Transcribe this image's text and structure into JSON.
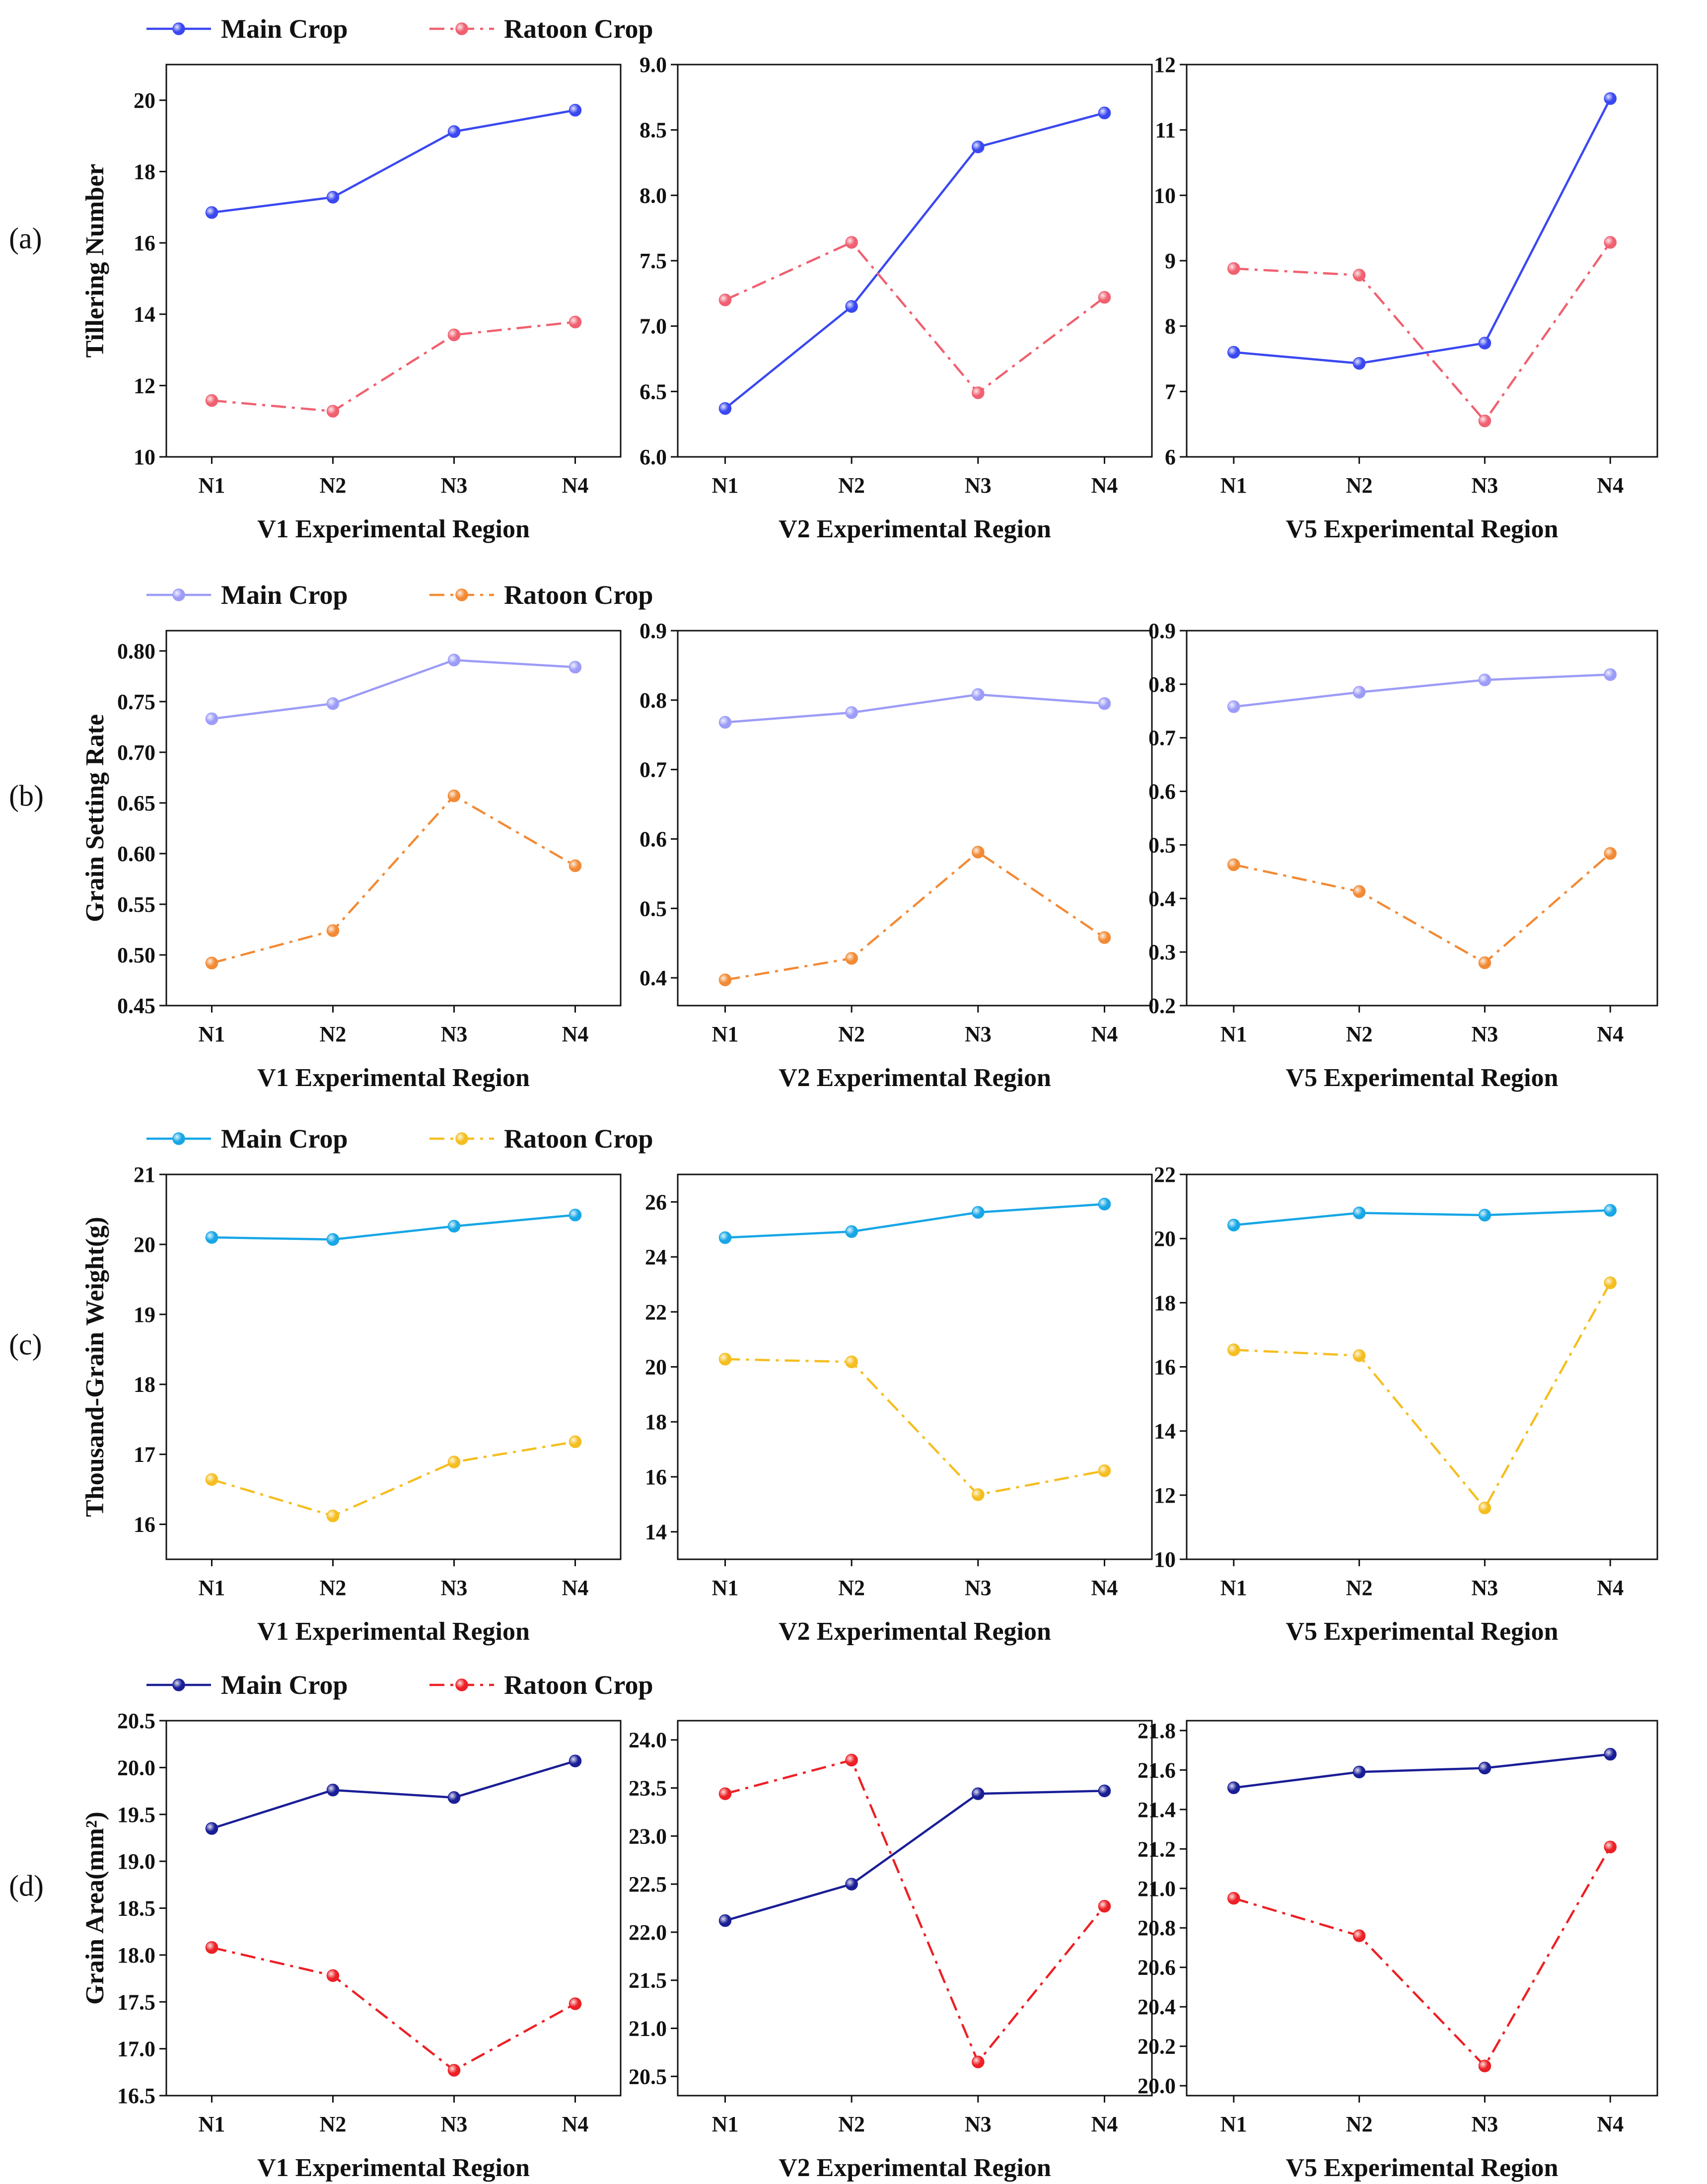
{
  "chart_data": [
    {
      "type": "line",
      "row": "a",
      "panel": "V1",
      "row_label": "(a)",
      "ylabel": "Tillering Number",
      "xlabel": "V1 Experimental Region",
      "categories": [
        "N1",
        "N2",
        "N3",
        "N4"
      ],
      "ylim": [
        10,
        21
      ],
      "yticks": [
        10,
        12,
        14,
        16,
        18,
        20
      ],
      "ytick_labels": [
        "10",
        "12",
        "14",
        "16",
        "18",
        "20"
      ],
      "legend": true,
      "series": [
        {
          "name": "Main Crop",
          "values": [
            16.85,
            17.28,
            19.12,
            19.72
          ],
          "color": "#3a48f0",
          "dash": "solid"
        },
        {
          "name": "Ratoon Crop",
          "values": [
            11.58,
            11.28,
            13.42,
            13.78
          ],
          "color": "#f06070",
          "dash": "dashdot"
        }
      ]
    },
    {
      "type": "line",
      "row": "a",
      "panel": "V2",
      "xlabel": "V2 Experimental Region",
      "categories": [
        "N1",
        "N2",
        "N3",
        "N4"
      ],
      "ylim": [
        6.0,
        9.0
      ],
      "yticks": [
        6.0,
        6.5,
        7.0,
        7.5,
        8.0,
        8.5,
        9.0
      ],
      "ytick_labels": [
        "6.0",
        "6.5",
        "7.0",
        "7.5",
        "8.0",
        "8.5",
        "9.0"
      ],
      "series": [
        {
          "name": "Main Crop",
          "values": [
            6.37,
            7.15,
            8.37,
            8.63
          ],
          "color": "#3a48f0",
          "dash": "solid"
        },
        {
          "name": "Ratoon Crop",
          "values": [
            7.2,
            7.64,
            6.49,
            7.22
          ],
          "color": "#f06070",
          "dash": "dashdot"
        }
      ]
    },
    {
      "type": "line",
      "row": "a",
      "panel": "V5",
      "xlabel": "V5 Experimental Region",
      "categories": [
        "N1",
        "N2",
        "N3",
        "N4"
      ],
      "ylim": [
        6,
        12
      ],
      "yticks": [
        6,
        7,
        8,
        9,
        10,
        11,
        12
      ],
      "ytick_labels": [
        "6",
        "7",
        "8",
        "9",
        "10",
        "11",
        "12"
      ],
      "series": [
        {
          "name": "Main Crop",
          "values": [
            7.6,
            7.43,
            7.74,
            11.48
          ],
          "color": "#3a48f0",
          "dash": "solid"
        },
        {
          "name": "Ratoon Crop",
          "values": [
            8.88,
            8.78,
            6.55,
            9.28
          ],
          "color": "#f06070",
          "dash": "dashdot"
        }
      ]
    },
    {
      "type": "line",
      "row": "b",
      "panel": "V1",
      "row_label": "(b)",
      "ylabel": "Grain Setting Rate",
      "xlabel": "V1 Experimental Region",
      "categories": [
        "N1",
        "N2",
        "N3",
        "N4"
      ],
      "ylim": [
        0.45,
        0.82
      ],
      "yticks": [
        0.45,
        0.5,
        0.55,
        0.6,
        0.65,
        0.7,
        0.75,
        0.8
      ],
      "ytick_labels": [
        "0.45",
        "0.50",
        "0.55",
        "0.60",
        "0.65",
        "0.70",
        "0.75",
        "0.80"
      ],
      "legend": true,
      "series": [
        {
          "name": "Main Crop",
          "values": [
            0.733,
            0.748,
            0.791,
            0.784
          ],
          "color": "#9c9cf8",
          "dash": "solid"
        },
        {
          "name": "Ratoon Crop",
          "values": [
            0.492,
            0.524,
            0.657,
            0.588
          ],
          "color": "#f28a35",
          "dash": "dashdot"
        }
      ]
    },
    {
      "type": "line",
      "row": "b",
      "panel": "V2",
      "xlabel": "V2 Experimental Region",
      "categories": [
        "N1",
        "N2",
        "N3",
        "N4"
      ],
      "ylim": [
        0.36,
        0.9
      ],
      "yticks": [
        0.4,
        0.5,
        0.6,
        0.7,
        0.8,
        0.9
      ],
      "ytick_labels": [
        "0.4",
        "0.5",
        "0.6",
        "0.7",
        "0.8",
        "0.9"
      ],
      "series": [
        {
          "name": "Main Crop",
          "values": [
            0.768,
            0.782,
            0.808,
            0.795
          ],
          "color": "#9c9cf8",
          "dash": "solid"
        },
        {
          "name": "Ratoon Crop",
          "values": [
            0.397,
            0.428,
            0.581,
            0.458
          ],
          "color": "#f28a35",
          "dash": "dashdot"
        }
      ]
    },
    {
      "type": "line",
      "row": "b",
      "panel": "V5",
      "xlabel": "V5 Experimental Region",
      "categories": [
        "N1",
        "N2",
        "N3",
        "N4"
      ],
      "ylim": [
        0.2,
        0.9
      ],
      "yticks": [
        0.2,
        0.3,
        0.4,
        0.5,
        0.6,
        0.7,
        0.8,
        0.9
      ],
      "ytick_labels": [
        "0.2",
        "0.3",
        "0.4",
        "0.5",
        "0.6",
        "0.7",
        "0.8",
        "0.9"
      ],
      "series": [
        {
          "name": "Main Crop",
          "values": [
            0.758,
            0.785,
            0.808,
            0.818
          ],
          "color": "#9c9cf8",
          "dash": "solid"
        },
        {
          "name": "Ratoon Crop",
          "values": [
            0.463,
            0.413,
            0.28,
            0.484
          ],
          "color": "#f28a35",
          "dash": "dashdot"
        }
      ]
    },
    {
      "type": "line",
      "row": "c",
      "panel": "V1",
      "row_label": "(c)",
      "ylabel": "Thousand-Grain Weight(g)",
      "xlabel": "V1 Experimental Region",
      "categories": [
        "N1",
        "N2",
        "N3",
        "N4"
      ],
      "ylim": [
        15.5,
        21
      ],
      "yticks": [
        16,
        17,
        18,
        19,
        20,
        21
      ],
      "ytick_labels": [
        "16",
        "17",
        "18",
        "19",
        "20",
        "21"
      ],
      "legend": true,
      "series": [
        {
          "name": "Main Crop",
          "values": [
            20.1,
            20.07,
            20.26,
            20.42
          ],
          "color": "#17a6e6",
          "dash": "solid"
        },
        {
          "name": "Ratoon Crop",
          "values": [
            16.64,
            16.12,
            16.89,
            17.18
          ],
          "color": "#f5be20",
          "dash": "dashdot"
        }
      ]
    },
    {
      "type": "line",
      "row": "c",
      "panel": "V2",
      "xlabel": "V2 Experimental Region",
      "categories": [
        "N1",
        "N2",
        "N3",
        "N4"
      ],
      "ylim": [
        13,
        27
      ],
      "yticks": [
        14,
        16,
        18,
        20,
        22,
        24,
        26
      ],
      "ytick_labels": [
        "14",
        "16",
        "18",
        "20",
        "22",
        "24",
        "26"
      ],
      "series": [
        {
          "name": "Main Crop",
          "values": [
            24.7,
            24.92,
            25.62,
            25.92
          ],
          "color": "#17a6e6",
          "dash": "solid"
        },
        {
          "name": "Ratoon Crop",
          "values": [
            20.28,
            20.18,
            15.35,
            16.22
          ],
          "color": "#f5be20",
          "dash": "dashdot"
        }
      ]
    },
    {
      "type": "line",
      "row": "c",
      "panel": "V5",
      "xlabel": "V5 Experimental Region",
      "categories": [
        "N1",
        "N2",
        "N3",
        "N4"
      ],
      "ylim": [
        10,
        22
      ],
      "yticks": [
        10,
        12,
        14,
        16,
        18,
        20,
        22
      ],
      "ytick_labels": [
        "10",
        "12",
        "14",
        "16",
        "18",
        "20",
        "22"
      ],
      "series": [
        {
          "name": "Main Crop",
          "values": [
            20.42,
            20.8,
            20.73,
            20.88
          ],
          "color": "#17a6e6",
          "dash": "solid"
        },
        {
          "name": "Ratoon Crop",
          "values": [
            16.53,
            16.35,
            11.6,
            18.62
          ],
          "color": "#f5be20",
          "dash": "dashdot"
        }
      ]
    },
    {
      "type": "line",
      "row": "d",
      "panel": "V1",
      "row_label": "(d)",
      "ylabel": "Grain Area(mm²)",
      "xlabel": "V1 Experimental Region",
      "categories": [
        "N1",
        "N2",
        "N3",
        "N4"
      ],
      "ylim": [
        16.5,
        20.5
      ],
      "yticks": [
        16.5,
        17.0,
        17.5,
        18.0,
        18.5,
        19.0,
        19.5,
        20.0,
        20.5
      ],
      "ytick_labels": [
        "16.5",
        "17.0",
        "17.5",
        "18.0",
        "18.5",
        "19.0",
        "19.5",
        "20.0",
        "20.5"
      ],
      "legend": true,
      "series": [
        {
          "name": "Main Crop",
          "values": [
            19.35,
            19.76,
            19.68,
            20.07
          ],
          "color": "#1a1e96",
          "dash": "solid"
        },
        {
          "name": "Ratoon Crop",
          "values": [
            18.08,
            17.78,
            16.77,
            17.48
          ],
          "color": "#ec2025",
          "dash": "dashdot"
        }
      ]
    },
    {
      "type": "line",
      "row": "d",
      "panel": "V2",
      "xlabel": "V2 Experimental Region",
      "categories": [
        "N1",
        "N2",
        "N3",
        "N4"
      ],
      "ylim": [
        20.3,
        24.2
      ],
      "yticks": [
        20.5,
        21.0,
        21.5,
        22.0,
        22.5,
        23.0,
        23.5,
        24.0
      ],
      "ytick_labels": [
        "20.5",
        "21.0",
        "21.5",
        "22.0",
        "22.5",
        "23.0",
        "23.5",
        "24.0"
      ],
      "series": [
        {
          "name": "Main Crop",
          "values": [
            22.12,
            22.5,
            23.44,
            23.47
          ],
          "color": "#1a1e96",
          "dash": "solid"
        },
        {
          "name": "Ratoon Crop",
          "values": [
            23.44,
            23.79,
            20.65,
            22.27
          ],
          "color": "#ec2025",
          "dash": "dashdot"
        }
      ]
    },
    {
      "type": "line",
      "row": "d",
      "panel": "V5",
      "xlabel": "V5 Experimental Region",
      "categories": [
        "N1",
        "N2",
        "N3",
        "N4"
      ],
      "ylim": [
        19.95,
        21.85
      ],
      "yticks": [
        20.0,
        20.2,
        20.4,
        20.6,
        20.8,
        21.0,
        21.2,
        21.4,
        21.6,
        21.8
      ],
      "ytick_labels": [
        "20.0",
        "20.2",
        "20.4",
        "20.6",
        "20.8",
        "21.0",
        "21.2",
        "21.4",
        "21.6",
        "21.8"
      ],
      "series": [
        {
          "name": "Main Crop",
          "values": [
            21.51,
            21.59,
            21.61,
            21.68
          ],
          "color": "#1a1e96",
          "dash": "solid"
        },
        {
          "name": "Ratoon Crop",
          "values": [
            20.95,
            20.76,
            20.1,
            21.21
          ],
          "color": "#ec2025",
          "dash": "dashdot"
        }
      ]
    }
  ]
}
